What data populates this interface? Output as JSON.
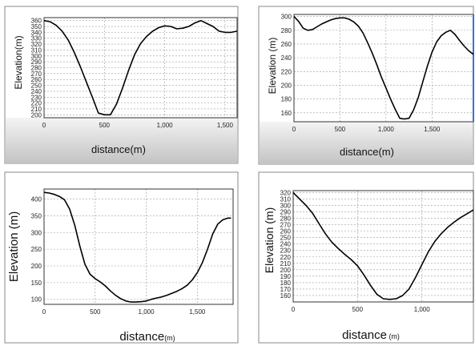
{
  "chart_data": [
    {
      "type": "line",
      "xlabel": "distance(m)",
      "ylabel": "Elevation(m)",
      "xlim": [
        0,
        1600
      ],
      "ylim": [
        195,
        365
      ],
      "xticks": [
        0,
        500,
        1000,
        1500
      ],
      "xtick_labels": [
        "0",
        "500",
        "1,000",
        "1,500"
      ],
      "yticks": [
        200,
        210,
        220,
        230,
        240,
        250,
        260,
        270,
        280,
        290,
        300,
        310,
        320,
        330,
        340,
        350,
        360
      ],
      "grid": true,
      "series": [
        {
          "x": [
            0,
            50,
            100,
            150,
            200,
            250,
            300,
            350,
            400,
            450,
            500,
            550,
            600,
            650,
            700,
            750,
            800,
            850,
            900,
            950,
            1000,
            1050,
            1100,
            1150,
            1200,
            1250,
            1300,
            1350,
            1400,
            1450,
            1500,
            1550,
            1600
          ],
          "y": [
            360,
            358,
            352,
            342,
            327,
            306,
            282,
            256,
            230,
            203,
            200,
            200,
            218,
            245,
            275,
            302,
            321,
            333,
            342,
            348,
            351,
            350,
            346,
            347,
            350,
            356,
            360,
            355,
            350,
            342,
            340,
            340,
            342
          ]
        }
      ]
    },
    {
      "type": "line",
      "xlabel": "distance(m)",
      "ylabel": "Elevation (m)",
      "xlim": [
        0,
        1950
      ],
      "ylim": [
        147,
        303
      ],
      "xticks": [
        0,
        500,
        1000,
        1500
      ],
      "xtick_labels": [
        "0",
        "500",
        "1,000",
        "1,500"
      ],
      "yticks": [
        160,
        180,
        200,
        220,
        240,
        260,
        280,
        300
      ],
      "grid": true,
      "series": [
        {
          "x": [
            0,
            50,
            100,
            150,
            200,
            250,
            300,
            350,
            400,
            450,
            500,
            550,
            600,
            650,
            700,
            750,
            800,
            850,
            900,
            950,
            1000,
            1050,
            1100,
            1150,
            1200,
            1250,
            1300,
            1350,
            1400,
            1450,
            1500,
            1550,
            1600,
            1650,
            1700,
            1750,
            1800,
            1850,
            1900,
            1950
          ],
          "y": [
            300,
            293,
            283,
            280,
            281,
            285,
            289,
            292,
            295,
            297,
            298,
            298,
            296,
            292,
            286,
            276,
            262,
            247,
            230,
            212,
            196,
            180,
            165,
            152,
            151,
            152,
            164,
            182,
            205,
            228,
            248,
            263,
            272,
            277,
            280,
            274,
            265,
            257,
            250,
            245
          ]
        }
      ]
    },
    {
      "type": "line",
      "xlabel": "distance(m)",
      "ylabel": "Elevation (m)",
      "xlim": [
        0,
        1850
      ],
      "ylim": [
        85,
        430
      ],
      "xticks": [
        0,
        500,
        1000,
        1500
      ],
      "xtick_labels": [
        "0",
        "500",
        "1,000",
        "1,500"
      ],
      "yticks": [
        100,
        150,
        200,
        250,
        300,
        350,
        400
      ],
      "grid": true,
      "series": [
        {
          "x": [
            0,
            50,
            100,
            150,
            200,
            250,
            300,
            350,
            400,
            450,
            500,
            550,
            600,
            650,
            700,
            750,
            800,
            850,
            900,
            950,
            1000,
            1050,
            1100,
            1150,
            1200,
            1250,
            1300,
            1350,
            1400,
            1450,
            1500,
            1550,
            1600,
            1650,
            1700,
            1750,
            1800,
            1830
          ],
          "y": [
            420,
            418,
            414,
            408,
            398,
            370,
            322,
            260,
            205,
            175,
            162,
            152,
            140,
            125,
            112,
            102,
            95,
            92,
            92,
            93,
            95,
            100,
            104,
            107,
            112,
            118,
            124,
            132,
            142,
            158,
            180,
            210,
            250,
            295,
            325,
            338,
            343,
            343
          ]
        }
      ]
    },
    {
      "type": "line",
      "xlabel": "distance (m)",
      "ylabel": "Elevation (m)",
      "xlim": [
        0,
        1400
      ],
      "ylim": [
        150,
        323
      ],
      "xticks": [
        0,
        500,
        1000
      ],
      "xtick_labels": [
        "0",
        "500",
        "1,000"
      ],
      "yticks": [
        160,
        170,
        180,
        190,
        200,
        210,
        220,
        230,
        240,
        250,
        260,
        270,
        280,
        290,
        300,
        310,
        320
      ],
      "grid": true,
      "series": [
        {
          "x": [
            0,
            50,
            100,
            150,
            200,
            250,
            300,
            350,
            400,
            450,
            500,
            550,
            600,
            650,
            700,
            750,
            800,
            850,
            900,
            950,
            1000,
            1050,
            1100,
            1150,
            1200,
            1250,
            1300,
            1350,
            1400
          ],
          "y": [
            320,
            310,
            300,
            288,
            272,
            256,
            243,
            233,
            224,
            216,
            206,
            192,
            176,
            162,
            155,
            154,
            155,
            160,
            170,
            188,
            208,
            228,
            244,
            256,
            266,
            274,
            281,
            287,
            293
          ]
        }
      ]
    }
  ]
}
